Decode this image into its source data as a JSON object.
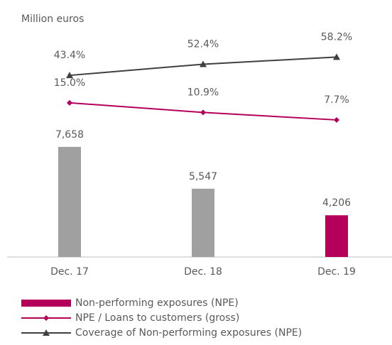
{
  "chart_data": {
    "type": "bar-line",
    "unit_label": "Million euros",
    "categories": [
      "Dec. 17",
      "Dec. 18",
      "Dec. 19"
    ],
    "ylim": [
      2100,
      14000
    ],
    "y2lim": [
      -103,
      87
    ],
    "y3lim": [
      -50.8,
      49.8
    ],
    "series": [
      {
        "name": "Non-performing exposures (NPE)",
        "type": "bar",
        "color": "#b5005b",
        "colors": [
          "#a0a0a0",
          "#a0a0a0",
          "#b5005b"
        ],
        "values": [
          7658,
          5547,
          4206
        ],
        "value_labels": [
          "7,658",
          "5,547",
          "4,206"
        ],
        "axis": "y"
      },
      {
        "name": "NPE / Loans to customers (gross)",
        "type": "line",
        "marker": "diamond",
        "color": "#b5005b",
        "values": [
          15.0,
          10.9,
          7.7
        ],
        "value_labels": [
          "15.0%",
          "10.9%",
          "7.7%"
        ],
        "axis": "y3"
      },
      {
        "name": "Coverage of Non-performing exposures (NPE)",
        "type": "line",
        "marker": "triangle",
        "color": "#404040",
        "values": [
          43.4,
          52.4,
          58.2
        ],
        "value_labels": [
          "43.4%",
          "52.4%",
          "58.2%"
        ],
        "axis": "y2"
      }
    ]
  }
}
